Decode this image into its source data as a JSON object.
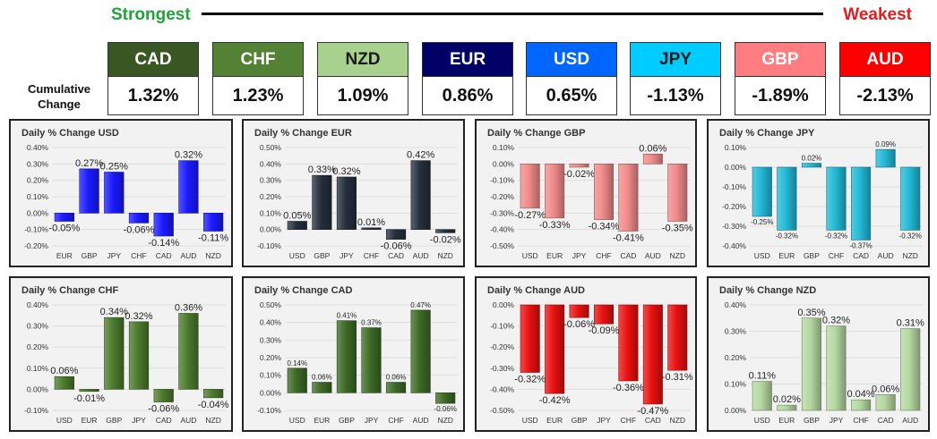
{
  "header": {
    "strongest": "Strongest",
    "weakest": "Weakest"
  },
  "cumulative": {
    "label_line1": "Cumulative",
    "label_line2": "Change",
    "items": [
      {
        "name": "CAD",
        "value": "1.32%",
        "color": "#385723",
        "text_color": "#ffffff"
      },
      {
        "name": "CHF",
        "value": "1.23%",
        "color": "#548235",
        "text_color": "#ffffff"
      },
      {
        "name": "NZD",
        "value": "1.09%",
        "color": "#a9d18e",
        "text_color": "#1a1a1a"
      },
      {
        "name": "EUR",
        "value": "0.86%",
        "color": "#000066",
        "text_color": "#ffffff"
      },
      {
        "name": "USD",
        "value": "0.65%",
        "color": "#0066ff",
        "text_color": "#ffffff"
      },
      {
        "name": "JPY",
        "value": "-1.13%",
        "color": "#00ccff",
        "text_color": "#1a1a1a"
      },
      {
        "name": "GBP",
        "value": "-1.89%",
        "color": "#ff7c80",
        "text_color": "#ffffff"
      },
      {
        "name": "AUD",
        "value": "-2.13%",
        "color": "#ff0000",
        "text_color": "#ffffff"
      }
    ]
  },
  "chart_data": [
    {
      "type": "bar",
      "title": "Daily % Change USD",
      "color": "#1a1aff",
      "categories": [
        "EUR",
        "GBP",
        "JPY",
        "CHF",
        "CAD",
        "AUD",
        "NZD"
      ],
      "values": [
        -0.05,
        0.27,
        0.25,
        -0.06,
        -0.14,
        0.32,
        -0.11
      ],
      "labels": [
        "-0.05%",
        "0.27%",
        "0.25%",
        "-0.06%",
        "-0.14%",
        "0.32%",
        "-0.11%"
      ],
      "ylim": [
        -0.2,
        0.4
      ],
      "yticks": [
        -0.2,
        -0.1,
        0,
        0.1,
        0.2,
        0.3,
        0.4
      ],
      "ytick_labels": [
        "-0.20%",
        "-0.10%",
        "0.00%",
        "0.10%",
        "0.20%",
        "0.30%",
        "0.40%"
      ],
      "label_size": 11
    },
    {
      "type": "bar",
      "title": "Daily % Change EUR",
      "color": "#262f3d",
      "categories": [
        "USD",
        "GBP",
        "JPY",
        "CHF",
        "CAD",
        "AUD",
        "NZD"
      ],
      "values": [
        0.05,
        0.33,
        0.32,
        0.01,
        -0.06,
        0.42,
        -0.02
      ],
      "labels": [
        "0.05%",
        "0.33%",
        "0.32%",
        "0.01%",
        "-0.06%",
        "0.42%",
        "-0.02%"
      ],
      "ylim": [
        -0.1,
        0.5
      ],
      "yticks": [
        -0.1,
        0,
        0.1,
        0.2,
        0.3,
        0.4,
        0.5
      ],
      "ytick_labels": [
        "-0.10%",
        "0.00%",
        "0.10%",
        "0.20%",
        "0.30%",
        "0.40%",
        "0.50%"
      ],
      "label_size": 11
    },
    {
      "type": "bar",
      "title": "Daily % Change GBP",
      "color": "#f08a8a",
      "categories": [
        "USD",
        "EUR",
        "JPY",
        "CHF",
        "CAD",
        "AUD",
        "NZD"
      ],
      "values": [
        -0.27,
        -0.33,
        -0.02,
        -0.34,
        -0.41,
        0.06,
        -0.35
      ],
      "labels": [
        "-0.27%",
        "-0.33%",
        "-0.02%",
        "-0.34%",
        "-0.41%",
        "0.06%",
        "-0.35%"
      ],
      "ylim": [
        -0.5,
        0.1
      ],
      "yticks": [
        -0.5,
        -0.4,
        -0.3,
        -0.2,
        -0.1,
        0,
        0.1
      ],
      "ytick_labels": [
        "-0.50%",
        "-0.40%",
        "-0.30%",
        "-0.20%",
        "-0.10%",
        "0.00%",
        "0.10%"
      ],
      "label_size": 11
    },
    {
      "type": "bar",
      "title": "Daily % Change JPY",
      "color": "#22b8d6",
      "categories": [
        "USD",
        "EUR",
        "GBP",
        "CHF",
        "CAD",
        "AUD",
        "NZD"
      ],
      "values": [
        -0.25,
        -0.32,
        0.02,
        -0.32,
        -0.37,
        0.09,
        -0.32
      ],
      "labels": [
        "-0.25%",
        "-0.32%",
        "0.02%",
        "-0.32%",
        "-0.37%",
        "0.09%",
        "-0.32%"
      ],
      "ylim": [
        -0.4,
        0.1
      ],
      "yticks": [
        -0.4,
        -0.3,
        -0.2,
        -0.1,
        0,
        0.1
      ],
      "ytick_labels": [
        "-0.40%",
        "-0.30%",
        "-0.20%",
        "-0.10%",
        "0.00%",
        "0.10%"
      ],
      "label_size": 8
    },
    {
      "type": "bar",
      "title": "Daily % Change CHF",
      "color": "#4c7a2e",
      "categories": [
        "USD",
        "EUR",
        "GBP",
        "JPY",
        "CAD",
        "AUD",
        "NZD"
      ],
      "values": [
        0.06,
        -0.01,
        0.34,
        0.32,
        -0.06,
        0.36,
        -0.04
      ],
      "labels": [
        "0.06%",
        "-0.01%",
        "0.34%",
        "0.32%",
        "-0.06%",
        "0.36%",
        "-0.04%"
      ],
      "ylim": [
        -0.1,
        0.4
      ],
      "yticks": [
        -0.1,
        0,
        0.1,
        0.2,
        0.3,
        0.4
      ],
      "ytick_labels": [
        "-0.10%",
        "0.00%",
        "0.10%",
        "0.20%",
        "0.30%",
        "0.40%"
      ],
      "label_size": 11
    },
    {
      "type": "bar",
      "title": "Daily % Change CAD",
      "color": "#3d6a26",
      "categories": [
        "USD",
        "EUR",
        "GBP",
        "JPY",
        "CHF",
        "AUD",
        "NZD"
      ],
      "values": [
        0.14,
        0.06,
        0.41,
        0.37,
        0.06,
        0.47,
        -0.06
      ],
      "labels": [
        "0.14%",
        "0.06%",
        "0.41%",
        "0.37%",
        "0.06%",
        "0.47%",
        "-0.06%"
      ],
      "ylim": [
        -0.1,
        0.5
      ],
      "yticks": [
        -0.1,
        0,
        0.1,
        0.2,
        0.3,
        0.4,
        0.5
      ],
      "ytick_labels": [
        "-0.10%",
        "0.00%",
        "0.10%",
        "0.20%",
        "0.30%",
        "0.40%",
        "0.50%"
      ],
      "label_size": 8
    },
    {
      "type": "bar",
      "title": "Daily % Change AUD",
      "color": "#e81010",
      "categories": [
        "USD",
        "EUR",
        "GBP",
        "JPY",
        "CHF",
        "CAD",
        "NZD"
      ],
      "values": [
        -0.32,
        -0.42,
        -0.06,
        -0.09,
        -0.36,
        -0.47,
        -0.31
      ],
      "labels": [
        "-0.32%",
        "-0.42%",
        "-0.06%",
        "-0.09%",
        "-0.36%",
        "-0.47%",
        "-0.31%"
      ],
      "ylim": [
        -0.5,
        0
      ],
      "yticks": [
        -0.5,
        -0.4,
        -0.3,
        -0.2,
        -0.1,
        0
      ],
      "ytick_labels": [
        "-0.50%",
        "-0.40%",
        "-0.30%",
        "-0.20%",
        "-0.10%",
        "0.00%"
      ],
      "label_size": 11
    },
    {
      "type": "bar",
      "title": "Daily % Change NZD",
      "color": "#b4d8a0",
      "categories": [
        "USD",
        "EUR",
        "GBP",
        "JPY",
        "CHF",
        "CAD",
        "AUD"
      ],
      "values": [
        0.11,
        0.02,
        0.35,
        0.32,
        0.04,
        0.06,
        0.31
      ],
      "labels": [
        "0.11%",
        "0.02%",
        "0.35%",
        "0.32%",
        "0.04%",
        "0.06%",
        "0.31%"
      ],
      "ylim": [
        0,
        0.4
      ],
      "yticks": [
        0,
        0.1,
        0.2,
        0.3,
        0.4
      ],
      "ytick_labels": [
        "0.00%",
        "0.10%",
        "0.20%",
        "0.30%",
        "0.40%"
      ],
      "label_size": 11
    }
  ]
}
